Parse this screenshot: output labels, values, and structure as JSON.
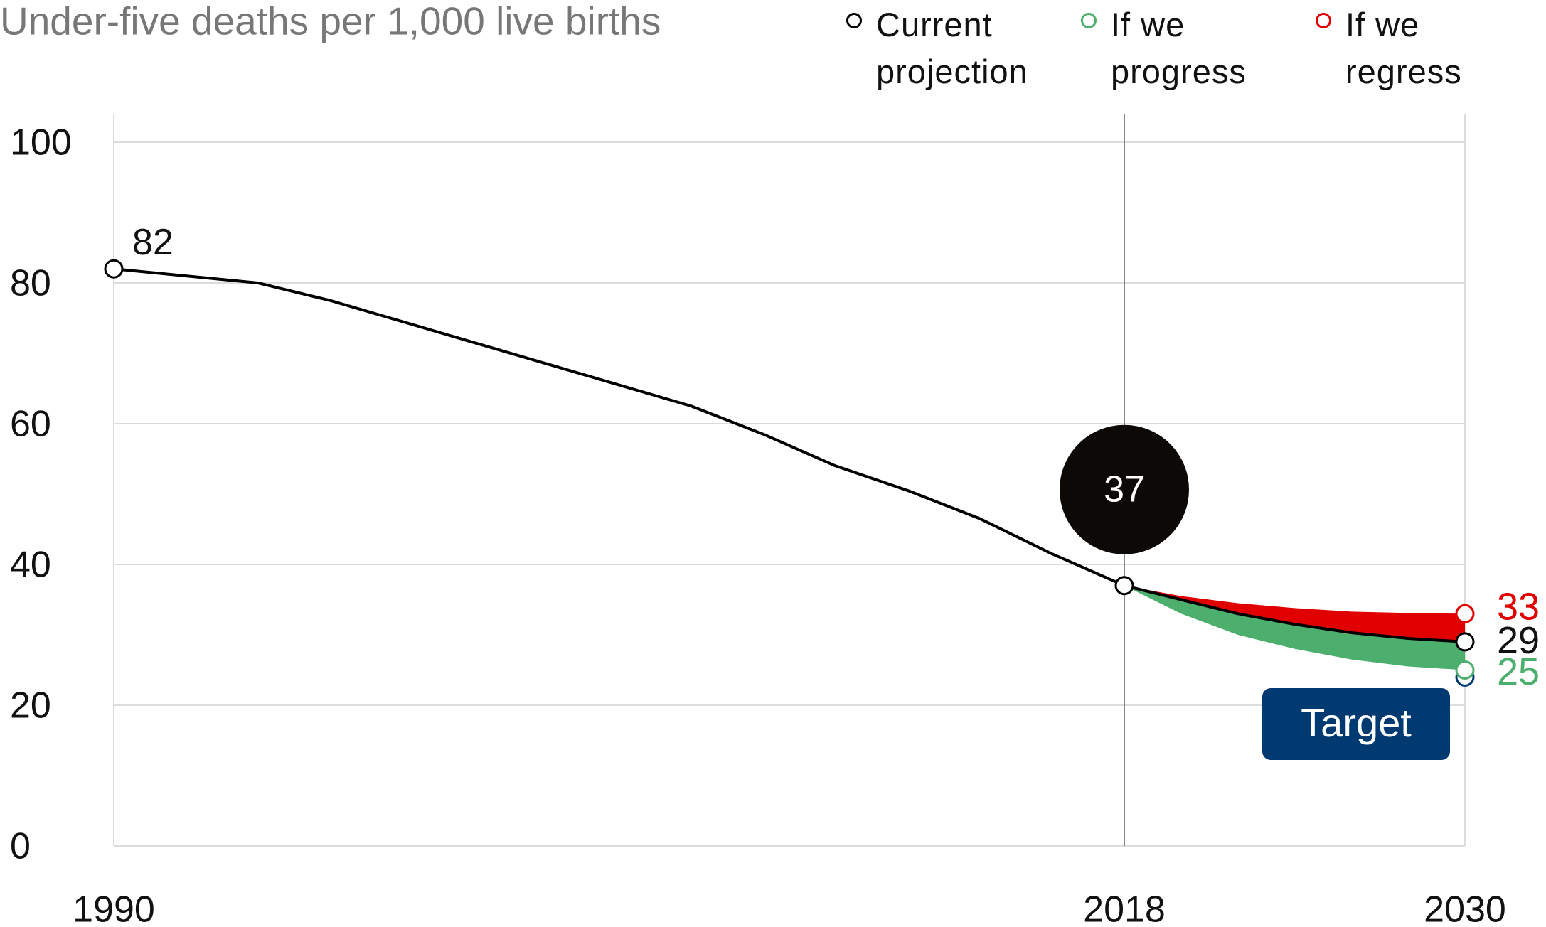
{
  "chart_data": {
    "type": "line",
    "title": "Under-five deaths per 1,000 live births",
    "x": [
      1990,
      1992,
      1994,
      1996,
      1998,
      2000,
      2002,
      2004,
      2006,
      2008,
      2010,
      2012,
      2014,
      2016,
      2018,
      2020,
      2022,
      2024,
      2026,
      2028,
      2030
    ],
    "series": [
      {
        "name": "Current projection",
        "color": "#000000",
        "values": [
          82,
          81,
          80,
          77.5,
          74.5,
          71.5,
          68.5,
          65.5,
          62.5,
          58.5,
          54,
          50.5,
          46.5,
          41.5,
          37,
          35,
          33,
          31.5,
          30.3,
          29.5,
          29
        ]
      },
      {
        "name": "If we progress",
        "color": "#4caf6e",
        "values": [
          null,
          null,
          null,
          null,
          null,
          null,
          null,
          null,
          null,
          null,
          null,
          null,
          null,
          null,
          37,
          33,
          30,
          28,
          26.5,
          25.5,
          25
        ]
      },
      {
        "name": "If we regress",
        "color": "#e00000",
        "values": [
          null,
          null,
          null,
          null,
          null,
          null,
          null,
          null,
          null,
          null,
          null,
          null,
          null,
          null,
          37,
          35.5,
          34.5,
          33.8,
          33.3,
          33.1,
          33
        ]
      }
    ],
    "target": {
      "label": "Target",
      "value": 24,
      "color": "#003a70"
    },
    "xticks": [
      1990,
      2018,
      2030
    ],
    "ylim": [
      0,
      100
    ],
    "yticks": [
      0,
      20,
      40,
      60,
      80,
      100
    ],
    "grid": true
  }
}
